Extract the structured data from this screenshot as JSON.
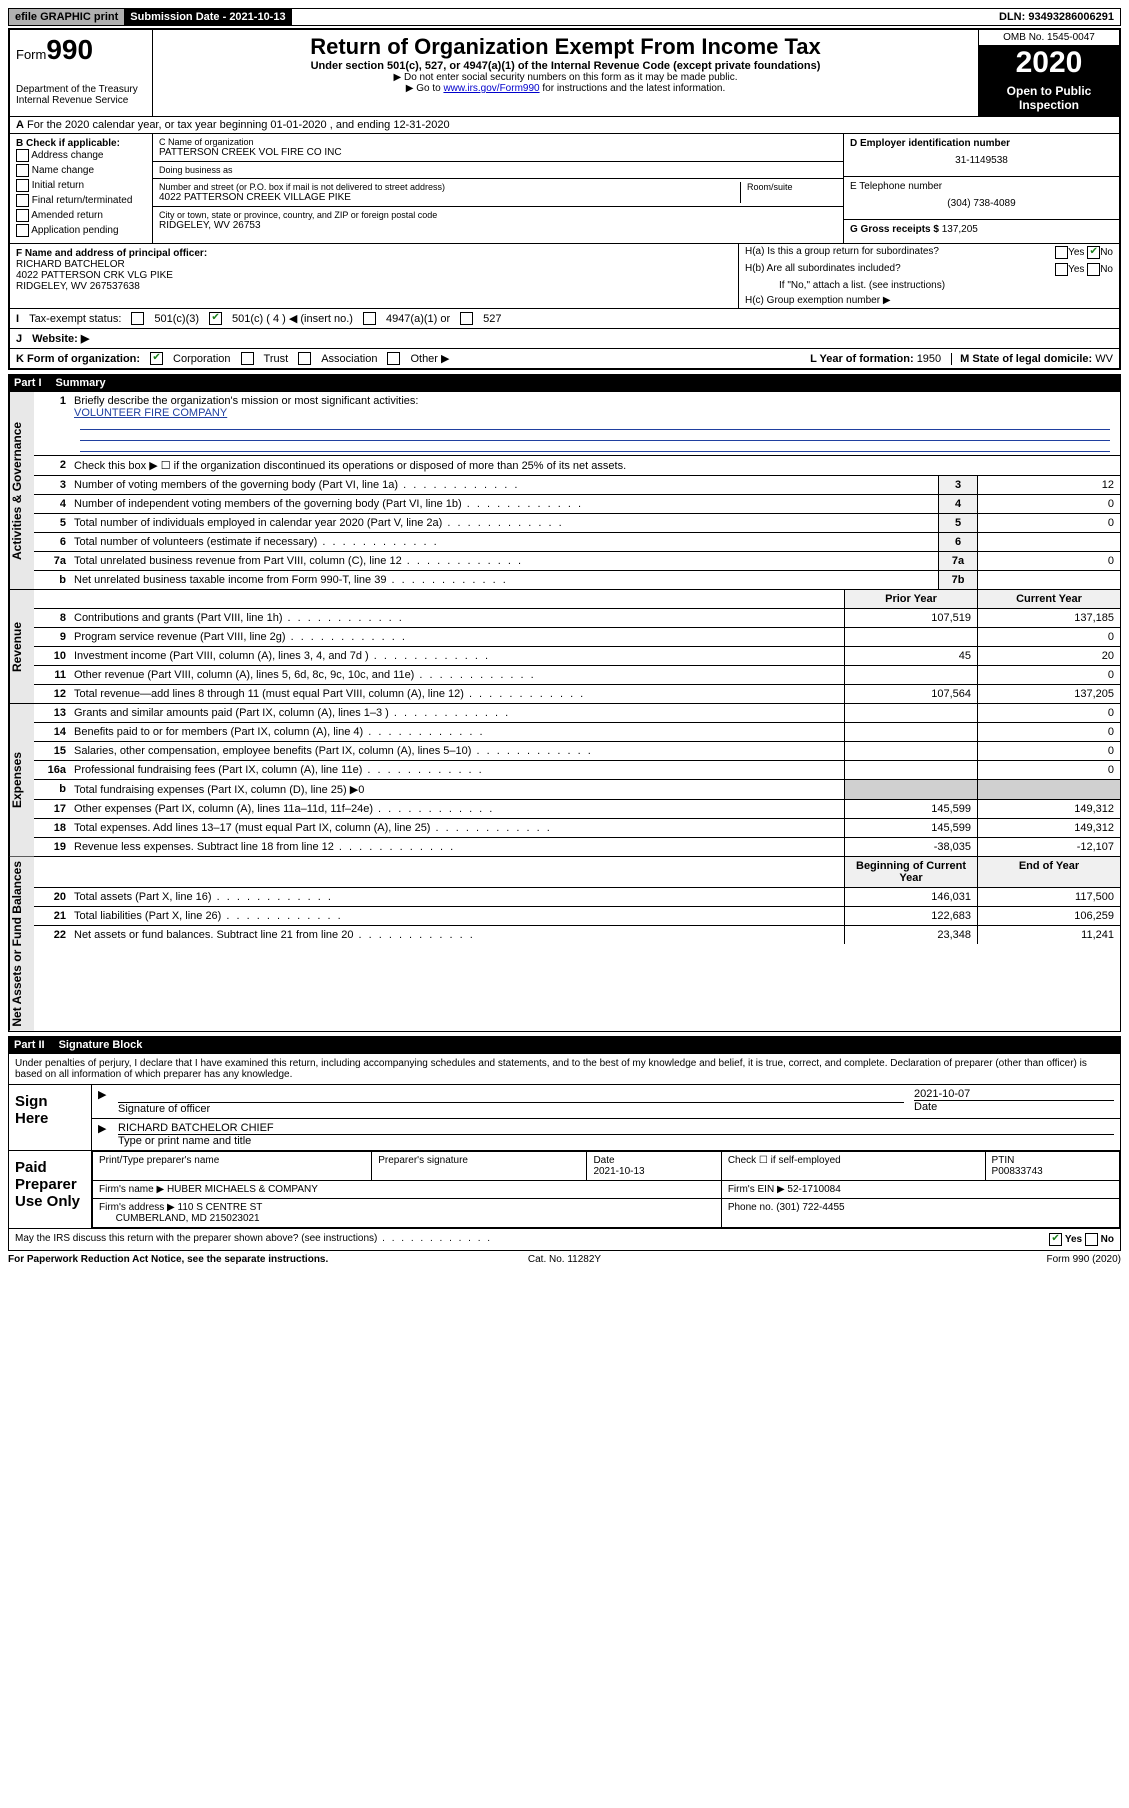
{
  "top": {
    "efile": "efile GRAPHIC print",
    "submission": "Submission Date - 2021-10-13",
    "dln": "DLN: 93493286006291"
  },
  "header": {
    "form_label": "Form",
    "form_no": "990",
    "dept": "Department of the Treasury\nInternal Revenue Service",
    "title": "Return of Organization Exempt From Income Tax",
    "sub": "Under section 501(c), 527, or 4947(a)(1) of the Internal Revenue Code (except private foundations)",
    "note1": "▶ Do not enter social security numbers on this form as it may be made public.",
    "note2_pre": "▶ Go to ",
    "note2_link": "www.irs.gov/Form990",
    "note2_post": " for instructions and the latest information.",
    "omb": "OMB No. 1545-0047",
    "year": "2020",
    "open": "Open to Public Inspection"
  },
  "lineA": "For the 2020 calendar year, or tax year beginning 01-01-2020   , and ending 12-31-2020",
  "B": {
    "hdr": "B Check if applicable:",
    "items": [
      "Address change",
      "Name change",
      "Initial return",
      "Final return/terminated",
      "Amended return",
      "Application pending"
    ]
  },
  "C": {
    "name_label": "C Name of organization",
    "name": "PATTERSON CREEK VOL FIRE CO INC",
    "dba_label": "Doing business as",
    "dba": "",
    "street_label": "Number and street (or P.O. box if mail is not delivered to street address)",
    "room_label": "Room/suite",
    "street": "4022 PATTERSON CREEK VILLAGE PIKE",
    "city_label": "City or town, state or province, country, and ZIP or foreign postal code",
    "city": "RIDGELEY, WV  26753"
  },
  "D": {
    "label": "D Employer identification number",
    "value": "31-1149538"
  },
  "E": {
    "label": "E Telephone number",
    "value": "(304) 738-4089"
  },
  "G": {
    "label": "G Gross receipts $",
    "value": "137,205"
  },
  "F": {
    "label": "F  Name and address of principal officer:",
    "name": "RICHARD BATCHELOR",
    "addr1": "4022 PATTERSON CRK VLG PIKE",
    "addr2": "RIDGELEY, WV  267537638"
  },
  "H": {
    "a": "H(a)  Is this a group return for subordinates?",
    "b": "H(b)  Are all subordinates included?",
    "b_note": "If \"No,\" attach a list. (see instructions)",
    "c": "H(c)  Group exemption number ▶",
    "yes": "Yes",
    "no": "No"
  },
  "I": {
    "label": "Tax-exempt status:",
    "opt1": "501(c)(3)",
    "opt2": "501(c) ( 4 ) ◀ (insert no.)",
    "opt3": "4947(a)(1) or",
    "opt4": "527"
  },
  "J": {
    "label": "Website: ▶"
  },
  "K": {
    "label": "K Form of organization:",
    "corp": "Corporation",
    "trust": "Trust",
    "assoc": "Association",
    "other": "Other ▶"
  },
  "L": {
    "label": "L Year of formation:",
    "value": "1950"
  },
  "M": {
    "label": "M State of legal domicile:",
    "value": "WV"
  },
  "partI": {
    "num": "Part I",
    "title": "Summary"
  },
  "summary": {
    "sections": [
      {
        "side": "Activities & Governance",
        "rows": [
          {
            "n": "1",
            "text": "Briefly describe the organization's mission or most significant activities:",
            "mission": "VOLUNTEER FIRE COMPANY"
          },
          {
            "n": "2",
            "text": "Check this box ▶ ☐  if the organization discontinued its operations or disposed of more than 25% of its net assets."
          },
          {
            "n": "3",
            "text": "Number of voting members of the governing body (Part VI, line 1a)",
            "box": "3",
            "cur": "12"
          },
          {
            "n": "4",
            "text": "Number of independent voting members of the governing body (Part VI, line 1b)",
            "box": "4",
            "cur": "0"
          },
          {
            "n": "5",
            "text": "Total number of individuals employed in calendar year 2020 (Part V, line 2a)",
            "box": "5",
            "cur": "0"
          },
          {
            "n": "6",
            "text": "Total number of volunteers (estimate if necessary)",
            "box": "6",
            "cur": ""
          },
          {
            "n": "7a",
            "text": "Total unrelated business revenue from Part VIII, column (C), line 12",
            "box": "7a",
            "cur": "0"
          },
          {
            "n": "b",
            "text": "Net unrelated business taxable income from Form 990-T, line 39",
            "box": "7b",
            "cur": ""
          }
        ]
      },
      {
        "side": "Revenue",
        "header": {
          "prior": "Prior Year",
          "cur": "Current Year"
        },
        "rows": [
          {
            "n": "8",
            "text": "Contributions and grants (Part VIII, line 1h)",
            "prior": "107,519",
            "cur": "137,185"
          },
          {
            "n": "9",
            "text": "Program service revenue (Part VIII, line 2g)",
            "prior": "",
            "cur": "0"
          },
          {
            "n": "10",
            "text": "Investment income (Part VIII, column (A), lines 3, 4, and 7d )",
            "prior": "45",
            "cur": "20"
          },
          {
            "n": "11",
            "text": "Other revenue (Part VIII, column (A), lines 5, 6d, 8c, 9c, 10c, and 11e)",
            "prior": "",
            "cur": "0"
          },
          {
            "n": "12",
            "text": "Total revenue—add lines 8 through 11 (must equal Part VIII, column (A), line 12)",
            "prior": "107,564",
            "cur": "137,205"
          }
        ]
      },
      {
        "side": "Expenses",
        "rows": [
          {
            "n": "13",
            "text": "Grants and similar amounts paid (Part IX, column (A), lines 1–3 )",
            "prior": "",
            "cur": "0"
          },
          {
            "n": "14",
            "text": "Benefits paid to or for members (Part IX, column (A), line 4)",
            "prior": "",
            "cur": "0"
          },
          {
            "n": "15",
            "text": "Salaries, other compensation, employee benefits (Part IX, column (A), lines 5–10)",
            "prior": "",
            "cur": "0"
          },
          {
            "n": "16a",
            "text": "Professional fundraising fees (Part IX, column (A), line 11e)",
            "prior": "",
            "cur": "0"
          },
          {
            "n": "b",
            "text": "Total fundraising expenses (Part IX, column (D), line 25) ▶0",
            "nobox": true
          },
          {
            "n": "17",
            "text": "Other expenses (Part IX, column (A), lines 11a–11d, 11f–24e)",
            "prior": "145,599",
            "cur": "149,312"
          },
          {
            "n": "18",
            "text": "Total expenses. Add lines 13–17 (must equal Part IX, column (A), line 25)",
            "prior": "145,599",
            "cur": "149,312"
          },
          {
            "n": "19",
            "text": "Revenue less expenses. Subtract line 18 from line 12",
            "prior": "-38,035",
            "cur": "-12,107"
          }
        ]
      },
      {
        "side": "Net Assets or Fund Balances",
        "header": {
          "prior": "Beginning of Current Year",
          "cur": "End of Year"
        },
        "rows": [
          {
            "n": "20",
            "text": "Total assets (Part X, line 16)",
            "prior": "146,031",
            "cur": "117,500"
          },
          {
            "n": "21",
            "text": "Total liabilities (Part X, line 26)",
            "prior": "122,683",
            "cur": "106,259"
          },
          {
            "n": "22",
            "text": "Net assets or fund balances. Subtract line 21 from line 20",
            "prior": "23,348",
            "cur": "11,241"
          }
        ]
      }
    ]
  },
  "partII": {
    "num": "Part II",
    "title": "Signature Block"
  },
  "perjury": "Under penalties of perjury, I declare that I have examined this return, including accompanying schedules and statements, and to the best of my knowledge and belief, it is true, correct, and complete. Declaration of preparer (other than officer) is based on all information of which preparer has any knowledge.",
  "sign": {
    "here": "Sign Here",
    "sig_officer_label": "Signature of officer",
    "date_label": "Date",
    "date": "2021-10-07",
    "name": "RICHARD BATCHELOR  CHIEF",
    "name_label": "Type or print name and title"
  },
  "paid": {
    "side": "Paid Preparer Use Only",
    "h_name": "Print/Type preparer's name",
    "h_sig": "Preparer's signature",
    "h_date": "Date",
    "date": "2021-10-13",
    "h_check": "Check ☐ if self-employed",
    "h_ptin": "PTIN",
    "ptin": "P00833743",
    "firm_name_label": "Firm's name    ▶",
    "firm_name": "HUBER MICHAELS & COMPANY",
    "firm_ein_label": "Firm's EIN ▶",
    "firm_ein": "52-1710084",
    "firm_addr_label": "Firm's address ▶",
    "firm_addr1": "110 S CENTRE ST",
    "firm_addr2": "CUMBERLAND, MD  215023021",
    "phone_label": "Phone no.",
    "phone": "(301) 722-4455"
  },
  "irs_discuss": "May the IRS discuss this return with the preparer shown above? (see instructions)",
  "footer": {
    "left": "For Paperwork Reduction Act Notice, see the separate instructions.",
    "mid": "Cat. No. 11282Y",
    "right": "Form 990 (2020)"
  }
}
